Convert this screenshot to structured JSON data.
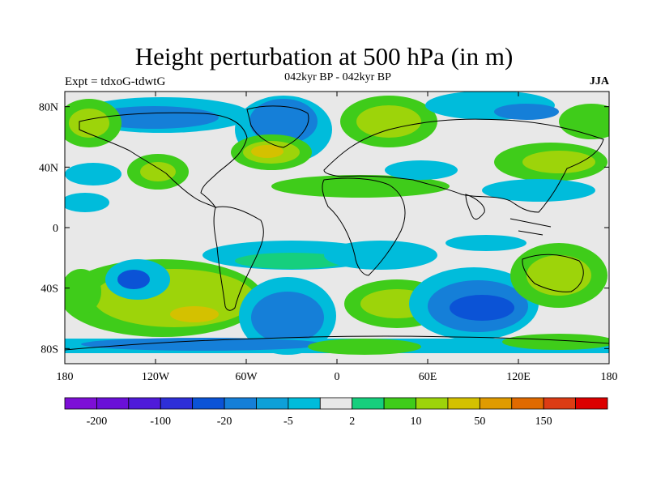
{
  "title": "Height perturbation at 500 hPa (in m)",
  "experiment": "Expt = tdxoG-tdwtG",
  "subtitle": "042kyr BP - 042kyr BP",
  "season": "JJA",
  "map": {
    "projection": "cylindrical-equidistant",
    "lon_range": [
      -180,
      180
    ],
    "lat_range": [
      -90,
      90
    ],
    "x_ticks": [
      "180",
      "120W",
      "60W",
      "0",
      "60E",
      "120E",
      "180"
    ],
    "y_ticks": [
      "80N",
      "40N",
      "0",
      "40S",
      "80S"
    ],
    "background_color": "#e8e8e8",
    "coastline_color": "#000000"
  },
  "colorbar": {
    "colors": [
      "#7d0fd6",
      "#6a10d8",
      "#4f1ad9",
      "#2e2fd8",
      "#0b53d6",
      "#157fd8",
      "#0ea0d8",
      "#00bcdb",
      "#e8e8e8",
      "#16cf7d",
      "#3fcc1a",
      "#9dd40a",
      "#d4c100",
      "#e09b00",
      "#e06a00",
      "#dc3c14",
      "#dc0000"
    ],
    "labels": [
      "-200",
      "-100",
      "-20",
      "-5",
      "2",
      "10",
      "50",
      "150"
    ]
  }
}
